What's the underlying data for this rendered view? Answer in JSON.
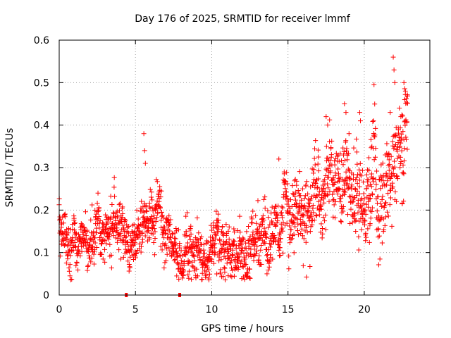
{
  "chart_data": {
    "type": "scatter",
    "title": "Day 176 of 2025, SRMTID for receiver lmmf",
    "xlabel": "GPS time / hours",
    "ylabel": "SRMTID / TECUs",
    "xlim": [
      0,
      24.3
    ],
    "ylim": [
      0,
      0.6
    ],
    "xticks": [
      0,
      5,
      10,
      15,
      20
    ],
    "yticks": [
      0,
      0.1,
      0.2,
      0.3,
      0.4,
      0.5,
      0.6
    ],
    "xtick_labels": [
      "0",
      "5",
      "10",
      "15",
      "20"
    ],
    "ytick_labels": [
      "0",
      "0.1",
      "0.2",
      "0.3",
      "0.4",
      "0.5",
      "0.6"
    ],
    "grid": true,
    "legend": "none",
    "marker": "+",
    "color": "#ff0000",
    "trend": [
      {
        "x": 0.0,
        "y": 0.2
      },
      {
        "x": 0.3,
        "y": 0.18
      },
      {
        "x": 0.6,
        "y": 0.1
      },
      {
        "x": 1.0,
        "y": 0.13
      },
      {
        "x": 2.0,
        "y": 0.12
      },
      {
        "x": 3.0,
        "y": 0.13
      },
      {
        "x": 4.0,
        "y": 0.15
      },
      {
        "x": 4.5,
        "y": 0.12
      },
      {
        "x": 5.0,
        "y": 0.14
      },
      {
        "x": 5.6,
        "y": 0.19
      },
      {
        "x": 6.2,
        "y": 0.18
      },
      {
        "x": 7.0,
        "y": 0.16
      },
      {
        "x": 7.6,
        "y": 0.12
      },
      {
        "x": 8.0,
        "y": 0.1
      },
      {
        "x": 9.0,
        "y": 0.09
      },
      {
        "x": 10.0,
        "y": 0.11
      },
      {
        "x": 11.0,
        "y": 0.12
      },
      {
        "x": 12.0,
        "y": 0.12
      },
      {
        "x": 13.0,
        "y": 0.13
      },
      {
        "x": 14.0,
        "y": 0.14
      },
      {
        "x": 15.0,
        "y": 0.17
      },
      {
        "x": 16.0,
        "y": 0.19
      },
      {
        "x": 17.0,
        "y": 0.23
      },
      {
        "x": 18.0,
        "y": 0.25
      },
      {
        "x": 19.0,
        "y": 0.25
      },
      {
        "x": 20.0,
        "y": 0.24
      },
      {
        "x": 21.0,
        "y": 0.22
      },
      {
        "x": 21.8,
        "y": 0.28
      },
      {
        "x": 22.2,
        "y": 0.32
      },
      {
        "x": 22.7,
        "y": 0.4
      }
    ],
    "spread": [
      {
        "x": 0.0,
        "s": 0.035
      },
      {
        "x": 5.0,
        "s": 0.035
      },
      {
        "x": 8.0,
        "s": 0.035
      },
      {
        "x": 14.0,
        "s": 0.04
      },
      {
        "x": 17.0,
        "s": 0.055
      },
      {
        "x": 22.8,
        "s": 0.06
      }
    ],
    "point_count": 1800,
    "time_range": [
      0.0,
      22.85
    ],
    "outliers": [
      {
        "x": 5.55,
        "y": 0.38
      },
      {
        "x": 5.6,
        "y": 0.34
      },
      {
        "x": 5.65,
        "y": 0.31
      },
      {
        "x": 14.4,
        "y": 0.32
      },
      {
        "x": 17.5,
        "y": 0.42
      },
      {
        "x": 17.6,
        "y": 0.4
      },
      {
        "x": 18.7,
        "y": 0.45
      },
      {
        "x": 18.8,
        "y": 0.43
      },
      {
        "x": 19.0,
        "y": 0.38
      },
      {
        "x": 19.7,
        "y": 0.43
      },
      {
        "x": 19.75,
        "y": 0.41
      },
      {
        "x": 20.6,
        "y": 0.41
      },
      {
        "x": 20.5,
        "y": 0.35
      },
      {
        "x": 21.7,
        "y": 0.43
      },
      {
        "x": 21.9,
        "y": 0.56
      },
      {
        "x": 21.95,
        "y": 0.53
      },
      {
        "x": 22.0,
        "y": 0.5
      },
      {
        "x": 22.6,
        "y": 0.5
      },
      {
        "x": 22.7,
        "y": 0.48
      },
      {
        "x": 22.65,
        "y": 0.46
      },
      {
        "x": 22.3,
        "y": 0.44
      },
      {
        "x": 22.4,
        "y": 0.42
      }
    ],
    "gap_markers": [
      {
        "x": 4.4,
        "y": 0.0
      },
      {
        "x": 7.9,
        "y": 0.0
      }
    ]
  }
}
